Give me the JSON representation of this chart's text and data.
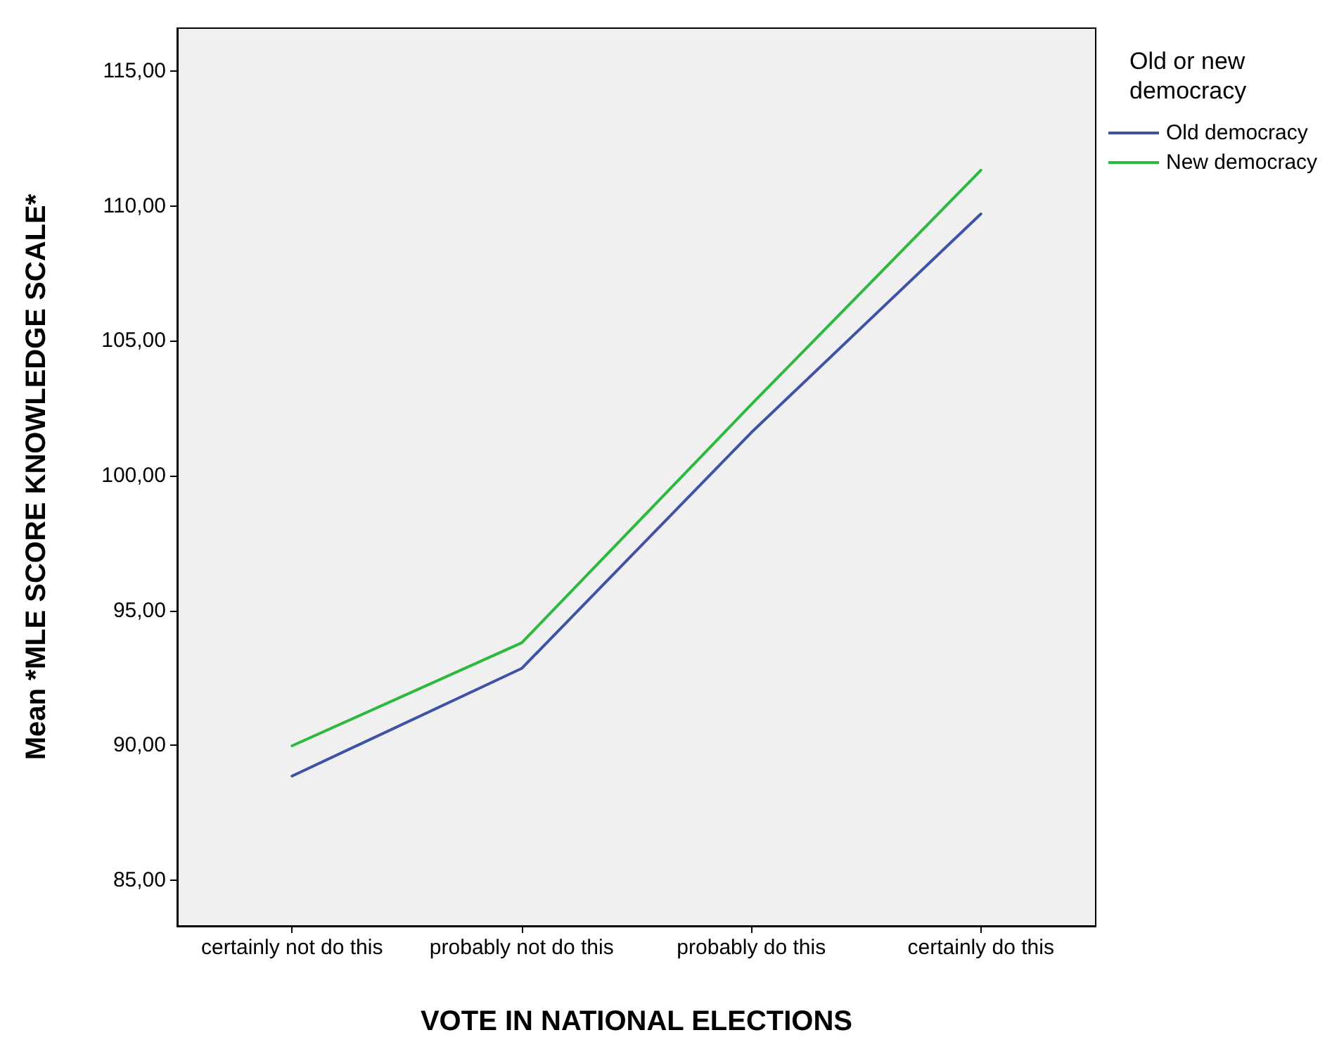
{
  "chart_data": {
    "type": "line",
    "xlabel": "VOTE IN NATIONAL ELECTIONS",
    "ylabel": "Mean *MLE SCORE KNOWLEDGE SCALE*",
    "legend_title": "Old or new democracy",
    "categories": [
      "certainly not do this",
      "probably not do this",
      "probably do this",
      "certainly do this"
    ],
    "series": [
      {
        "name": "Old democracy",
        "color": "#3f53a6",
        "values": [
          88.86,
          92.85,
          101.6,
          109.71
        ]
      },
      {
        "name": "New democracy",
        "color": "#2db83e",
        "values": [
          89.98,
          93.8,
          102.64,
          111.33
        ]
      }
    ],
    "ylim": [
      83.3,
      116.6
    ],
    "yticks": [
      {
        "value": 85,
        "label": "85,00"
      },
      {
        "value": 90,
        "label": "90,00"
      },
      {
        "value": 95,
        "label": "95,00"
      },
      {
        "value": 100,
        "label": "100,00"
      },
      {
        "value": 105,
        "label": "105,00"
      },
      {
        "value": 110,
        "label": "110,00"
      },
      {
        "value": 115,
        "label": "115,00"
      }
    ],
    "grid": false,
    "legend": "right",
    "marker": "none",
    "line_style": "solid"
  }
}
